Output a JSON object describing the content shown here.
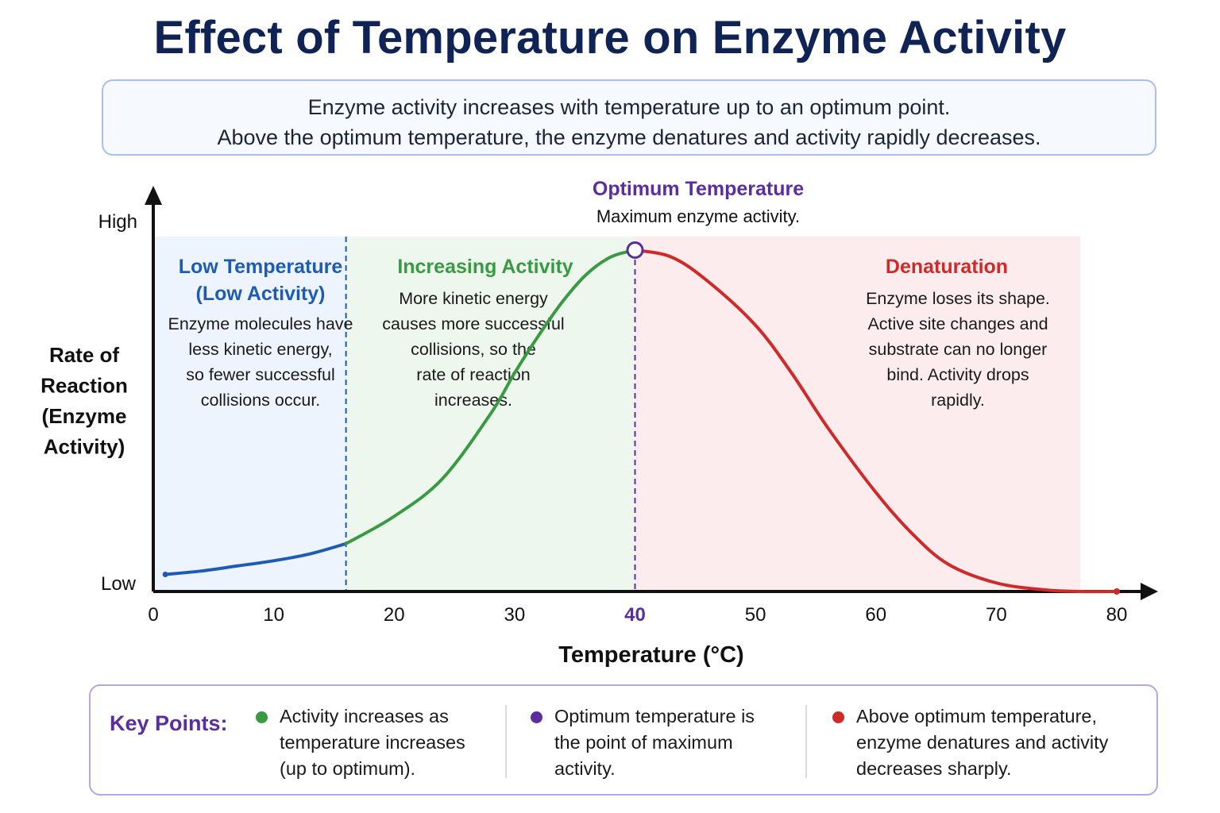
{
  "title": "Effect of Temperature on Enzyme Activity",
  "subtitle": {
    "line1": "Enzyme activity increases with temperature up to an optimum point.",
    "line2": "Above the optimum temperature, the enzyme denatures and activity rapidly decreases."
  },
  "colors": {
    "title": "#0f2355",
    "low": "#1e5cb3",
    "increasing": "#3a9a44",
    "optimum": "#5b2ea0",
    "denaturation": "#cf2a2a",
    "low_bg": "#eef4fd",
    "increasing_bg": "#eef7ee",
    "denaturation_bg": "#fdeced"
  },
  "chart_data": {
    "type": "line",
    "xlabel": "Temperature (°C)",
    "ylabel_lines": [
      "Rate of",
      "Reaction",
      "(Enzyme",
      "Activity)"
    ],
    "xlim": [
      0,
      80
    ],
    "ylim": [
      0,
      100
    ],
    "x_ticks": [
      0,
      10,
      20,
      30,
      40,
      50,
      60,
      70,
      80
    ],
    "y_tick_labels": {
      "high": "High",
      "low": "Low"
    },
    "grid": false,
    "series": [
      {
        "segment": "low",
        "x": [
          1,
          4,
          7,
          10,
          13,
          16
        ],
        "y": [
          5,
          6,
          7.5,
          9,
          11,
          14
        ]
      },
      {
        "segment": "increasing",
        "x": [
          16,
          20,
          24,
          28,
          30,
          32,
          34,
          36,
          38,
          40
        ],
        "y": [
          14,
          22,
          33,
          52,
          64,
          75,
          85,
          93,
          98,
          100
        ]
      },
      {
        "segment": "denaturation",
        "x": [
          40,
          43,
          46,
          50,
          53,
          56,
          60,
          63,
          66,
          70,
          74,
          77,
          80
        ],
        "y": [
          100,
          98,
          91,
          78,
          64,
          48,
          29,
          17,
          8,
          2.5,
          0.5,
          0,
          0
        ]
      }
    ],
    "regions": [
      {
        "key": "low",
        "x_start": 0,
        "x_end": 16,
        "title_lines": [
          "Low Temperature",
          "(Low Activity)"
        ],
        "body_lines": [
          "Enzyme molecules have",
          "less kinetic energy,",
          "so fewer successful",
          "collisions occur."
        ]
      },
      {
        "key": "increasing",
        "x_start": 16,
        "x_end": 40,
        "title_lines": [
          "Increasing Activity"
        ],
        "body_lines": [
          "More kinetic energy",
          "causes more successful",
          "collisions, so the",
          "rate of reaction",
          "increases."
        ]
      },
      {
        "key": "denaturation",
        "x_start": 40,
        "x_end": 77,
        "title_lines": [
          "Denaturation"
        ],
        "body_lines": [
          "Enzyme loses its shape.",
          "Active site changes and",
          "substrate can no longer",
          "bind. Activity drops",
          "rapidly."
        ]
      }
    ],
    "optimum": {
      "x": 40,
      "y": 100,
      "label": "Optimum Temperature",
      "note": "Maximum enzyme activity."
    }
  },
  "key_points": {
    "heading": "Key Points:",
    "items": [
      {
        "text": "Activity increases as temperature increases (up to optimum).",
        "color": "#3a9a44"
      },
      {
        "text": "Optimum temperature is the point of maximum activity.",
        "color": "#5b2ea0"
      },
      {
        "text": "Above optimum temperature, enzyme denatures and activity decreases sharply.",
        "color": "#cf2a2a"
      }
    ]
  }
}
